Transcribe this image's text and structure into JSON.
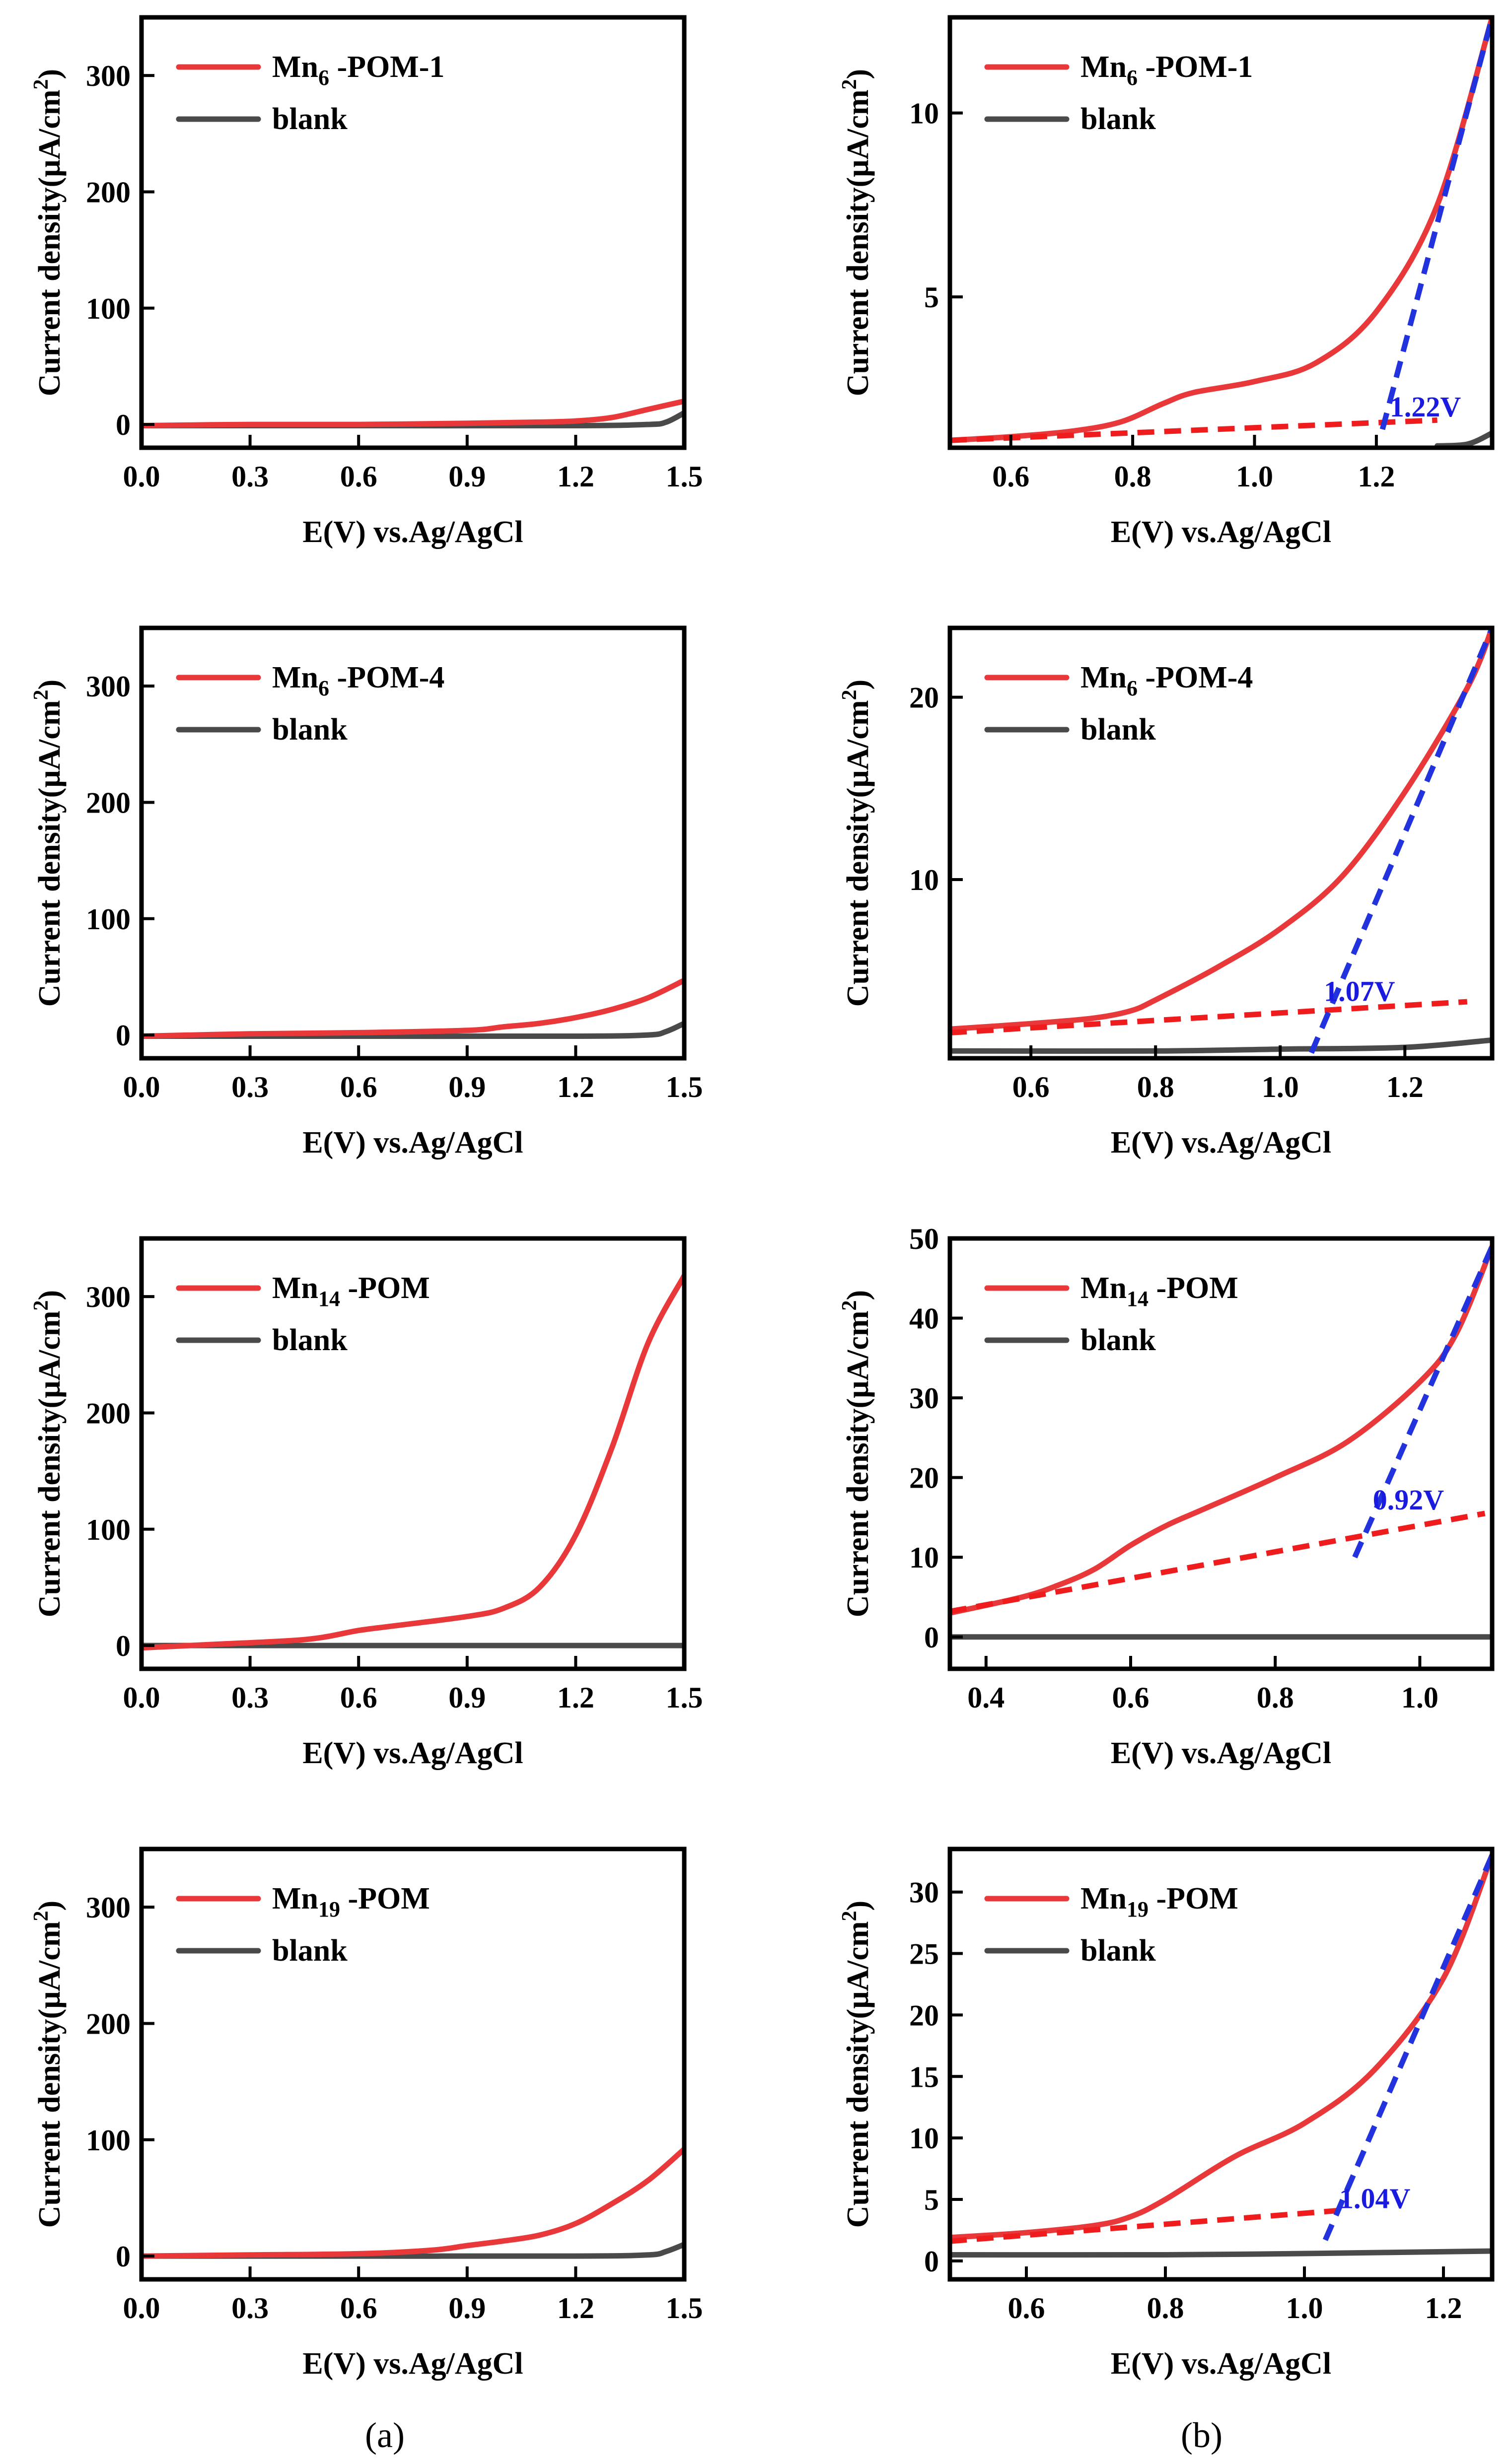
{
  "colors": {
    "sample": "#e8383a",
    "blank": "#4a4a4a",
    "fit_red": "#ee1c1c",
    "fit_blue": "#2233dd",
    "annotation": "#1b1bdf"
  },
  "captions": {
    "a": "(a)",
    "b": "(b)"
  },
  "chart_data": [
    {
      "id": "a1",
      "type": "line",
      "xlabel": "E(V) vs.Ag/AgCl",
      "ylabel": "Current density(μA/cm²)",
      "xlim": [
        0,
        1.5
      ],
      "ylim": [
        -20,
        350
      ],
      "xticks": [
        0.0,
        0.3,
        0.6,
        0.9,
        1.2,
        1.5
      ],
      "xtick_labels": [
        "0.0",
        "0.3",
        "0.6",
        "0.9",
        "1.2",
        "1.5"
      ],
      "yticks": [
        0,
        100,
        200,
        300
      ],
      "ytick_labels": [
        "0",
        "100",
        "200",
        "300"
      ],
      "legend": {
        "sample_main": "Mn",
        "sample_sub": "6",
        "sample_rest": " -POM-1",
        "blank": "blank"
      },
      "series": [
        {
          "name": "Mn6 -POM-1",
          "role": "sample",
          "x": [
            0,
            0.3,
            0.6,
            0.9,
            1.1,
            1.2,
            1.3,
            1.4,
            1.5
          ],
          "y": [
            -1,
            0,
            0,
            1,
            2,
            3,
            6,
            13,
            20
          ]
        },
        {
          "name": "blank",
          "role": "blank",
          "x": [
            0,
            0.6,
            1.2,
            1.4,
            1.45,
            1.5
          ],
          "y": [
            -1,
            -1,
            -1,
            0,
            2,
            10
          ]
        }
      ]
    },
    {
      "id": "b1",
      "type": "line",
      "xlabel": "E(V) vs.Ag/AgCl",
      "ylabel": "Current density(μA/cm²)",
      "xlim": [
        0.5,
        1.39
      ],
      "ylim": [
        0.9,
        12.6
      ],
      "xticks": [
        0.6,
        0.8,
        1.0,
        1.2
      ],
      "xtick_labels": [
        "0.6",
        "0.8",
        "1.0",
        "1.2"
      ],
      "yticks": [
        5,
        10
      ],
      "ytick_labels": [
        "5",
        "10"
      ],
      "legend": {
        "sample_main": "Mn",
        "sample_sub": "6",
        "sample_rest": " -POM-1",
        "blank": "blank"
      },
      "annotation": {
        "text": "1.22V",
        "x": 1.222,
        "y": 1.75
      },
      "series": [
        {
          "name": "Mn6 -POM-1",
          "role": "sample",
          "x": [
            0.5,
            0.6,
            0.7,
            0.78,
            0.85,
            0.9,
            1.0,
            1.1,
            1.2,
            1.3,
            1.39
          ],
          "y": [
            1.1,
            1.2,
            1.35,
            1.6,
            2.1,
            2.4,
            2.7,
            3.2,
            4.6,
            7.5,
            12.6
          ]
        },
        {
          "name": "blank",
          "role": "blank",
          "x": [
            1.3,
            1.35,
            1.39
          ],
          "y": [
            0.95,
            1.0,
            1.3
          ]
        },
        {
          "name": "fit-baseline",
          "role": "fit_red",
          "x": [
            0.5,
            1.3
          ],
          "y": [
            1.1,
            1.65
          ]
        },
        {
          "name": "fit-tangent",
          "role": "fit_blue",
          "x": [
            1.21,
            1.39
          ],
          "y": [
            1.4,
            12.6
          ]
        }
      ]
    },
    {
      "id": "a2",
      "type": "line",
      "xlabel": "E(V) vs.Ag/AgCl",
      "ylabel": "Current density(μA/cm²)",
      "xlim": [
        0,
        1.5
      ],
      "ylim": [
        -20,
        350
      ],
      "xticks": [
        0.0,
        0.3,
        0.6,
        0.9,
        1.2,
        1.5
      ],
      "xtick_labels": [
        "0.0",
        "0.3",
        "0.6",
        "0.9",
        "1.2",
        "1.5"
      ],
      "yticks": [
        0,
        100,
        200,
        300
      ],
      "ytick_labels": [
        "0",
        "100",
        "200",
        "300"
      ],
      "legend": {
        "sample_main": "Mn",
        "sample_sub": "6",
        "sample_rest": " -POM-4",
        "blank": "blank"
      },
      "series": [
        {
          "name": "Mn6 -POM-4",
          "role": "sample",
          "x": [
            0,
            0.3,
            0.6,
            0.9,
            1.0,
            1.1,
            1.2,
            1.3,
            1.4,
            1.5
          ],
          "y": [
            -1,
            1,
            2,
            4,
            7,
            10,
            15,
            22,
            32,
            47
          ]
        },
        {
          "name": "blank",
          "role": "blank",
          "x": [
            0,
            0.6,
            1.2,
            1.4,
            1.45,
            1.5
          ],
          "y": [
            -1,
            -1,
            -1,
            0,
            3,
            10
          ]
        }
      ]
    },
    {
      "id": "b2",
      "type": "line",
      "xlabel": "E(V) vs.Ag/AgCl",
      "ylabel": "Current density(μA/cm²)",
      "xlim": [
        0.47,
        1.34
      ],
      "ylim": [
        0.2,
        23.8
      ],
      "xticks": [
        0.6,
        0.8,
        1.0,
        1.2
      ],
      "xtick_labels": [
        "0.6",
        "0.8",
        "1.0",
        "1.2"
      ],
      "yticks": [
        10,
        20
      ],
      "ytick_labels": [
        "10",
        "20"
      ],
      "legend": {
        "sample_main": "Mn",
        "sample_sub": "6",
        "sample_rest": " -POM-4",
        "blank": "blank"
      },
      "annotation": {
        "text": "1.07V",
        "x": 1.07,
        "y": 3.35
      },
      "series": [
        {
          "name": "Mn6 -POM-4",
          "role": "sample",
          "x": [
            0.47,
            0.6,
            0.7,
            0.76,
            0.8,
            0.9,
            1.0,
            1.1,
            1.2,
            1.3,
            1.34
          ],
          "y": [
            1.8,
            2.1,
            2.4,
            2.8,
            3.4,
            5.2,
            7.3,
            10.2,
            14.8,
            20.5,
            23.8
          ]
        },
        {
          "name": "blank",
          "role": "blank",
          "x": [
            0.47,
            0.8,
            1.0,
            1.2,
            1.34
          ],
          "y": [
            0.6,
            0.6,
            0.7,
            0.8,
            1.2
          ]
        },
        {
          "name": "fit-baseline",
          "role": "fit_red",
          "x": [
            0.47,
            1.3
          ],
          "y": [
            1.6,
            3.3
          ]
        },
        {
          "name": "fit-tangent",
          "role": "fit_blue",
          "x": [
            1.05,
            1.34
          ],
          "y": [
            0.5,
            23.8
          ]
        }
      ]
    },
    {
      "id": "a3",
      "type": "line",
      "xlabel": "E(V) vs.Ag/AgCl",
      "ylabel": "Current density(μA/cm²)",
      "xlim": [
        0,
        1.5
      ],
      "ylim": [
        -20,
        350
      ],
      "xticks": [
        0.0,
        0.3,
        0.6,
        0.9,
        1.2,
        1.5
      ],
      "xtick_labels": [
        "0.0",
        "0.3",
        "0.6",
        "0.9",
        "1.2",
        "1.5"
      ],
      "yticks": [
        0,
        100,
        200,
        300
      ],
      "ytick_labels": [
        "0",
        "100",
        "200",
        "300"
      ],
      "legend": {
        "sample_main": "Mn",
        "sample_sub": "14",
        "sample_rest": " -POM",
        "blank": "blank"
      },
      "series": [
        {
          "name": "Mn14 -POM",
          "role": "sample",
          "x": [
            0,
            0.2,
            0.4,
            0.5,
            0.6,
            0.7,
            0.9,
            1.0,
            1.1,
            1.2,
            1.3,
            1.4,
            1.5
          ],
          "y": [
            -2,
            1,
            4,
            7,
            13,
            17,
            25,
            32,
            50,
            95,
            170,
            260,
            318
          ]
        },
        {
          "name": "blank",
          "role": "blank",
          "x": [
            0,
            0.5,
            1.0,
            1.5
          ],
          "y": [
            0,
            0,
            0,
            0
          ]
        }
      ]
    },
    {
      "id": "b3",
      "type": "line",
      "xlabel": "E(V) vs.Ag/AgCl",
      "ylabel": "Current density(μA/cm²)",
      "xlim": [
        0.35,
        1.1
      ],
      "ylim": [
        -4,
        50
      ],
      "xticks": [
        0.4,
        0.6,
        0.8,
        1.0
      ],
      "xtick_labels": [
        "0.4",
        "0.6",
        "0.8",
        "1.0"
      ],
      "yticks": [
        0,
        10,
        20,
        30,
        40,
        50
      ],
      "ytick_labels": [
        "0",
        "10",
        "20",
        "30",
        "40",
        "50"
      ],
      "legend": {
        "sample_main": "Mn",
        "sample_sub": "14",
        "sample_rest": " -POM",
        "blank": "blank"
      },
      "annotation": {
        "text": "0.92V",
        "x": 0.935,
        "y": 16.0
      },
      "series": [
        {
          "name": "Mn14 -POM",
          "role": "sample",
          "x": [
            0.35,
            0.45,
            0.5,
            0.55,
            0.6,
            0.65,
            0.7,
            0.8,
            0.9,
            1.0,
            1.05,
            1.1
          ],
          "y": [
            3,
            5,
            6.5,
            8.5,
            11.5,
            14,
            16,
            20,
            24.5,
            32,
            38,
            49
          ]
        },
        {
          "name": "blank",
          "role": "blank",
          "x": [
            0.35,
            1.1
          ],
          "y": [
            0,
            0
          ]
        },
        {
          "name": "fit-baseline",
          "role": "fit_red",
          "x": [
            0.35,
            1.09
          ],
          "y": [
            3.2,
            15.5
          ]
        },
        {
          "name": "fit-tangent",
          "role": "fit_blue",
          "x": [
            0.91,
            1.1
          ],
          "y": [
            10,
            49
          ]
        }
      ]
    },
    {
      "id": "a4",
      "type": "line",
      "xlabel": "E(V) vs.Ag/AgCl",
      "ylabel": "Current density(μA/cm²)",
      "xlim": [
        0,
        1.5
      ],
      "ylim": [
        -20,
        350
      ],
      "xticks": [
        0.0,
        0.3,
        0.6,
        0.9,
        1.2,
        1.5
      ],
      "xtick_labels": [
        "0.0",
        "0.3",
        "0.6",
        "0.9",
        "1.2",
        "1.5"
      ],
      "yticks": [
        0,
        100,
        200,
        300
      ],
      "ytick_labels": [
        "0",
        "100",
        "200",
        "300"
      ],
      "legend": {
        "sample_main": "Mn",
        "sample_sub": "19",
        "sample_rest": " -POM",
        "blank": "blank"
      },
      "series": [
        {
          "name": "Mn19 -POM",
          "role": "sample",
          "x": [
            0,
            0.3,
            0.6,
            0.8,
            0.9,
            1.0,
            1.1,
            1.2,
            1.3,
            1.4,
            1.5
          ],
          "y": [
            0,
            1,
            2,
            5,
            9,
            13,
            18,
            28,
            45,
            65,
            92
          ]
        },
        {
          "name": "blank",
          "role": "blank",
          "x": [
            0,
            0.6,
            1.2,
            1.4,
            1.45,
            1.5
          ],
          "y": [
            0,
            0,
            0,
            1,
            4,
            10
          ]
        }
      ]
    },
    {
      "id": "b4",
      "type": "line",
      "xlabel": "E(V) vs.Ag/AgCl",
      "ylabel": "Current density(μA/cm²)",
      "xlim": [
        0.49,
        1.27
      ],
      "ylim": [
        -1.5,
        33.5
      ],
      "xticks": [
        0.6,
        0.8,
        1.0,
        1.2
      ],
      "xtick_labels": [
        "0.6",
        "0.8",
        "1.0",
        "1.2"
      ],
      "yticks": [
        0,
        5,
        10,
        15,
        20,
        25,
        30
      ],
      "ytick_labels": [
        "0",
        "5",
        "10",
        "15",
        "20",
        "25",
        "30"
      ],
      "legend": {
        "sample_main": "Mn",
        "sample_sub": "19",
        "sample_rest": " -POM",
        "blank": "blank"
      },
      "annotation": {
        "text": "1.04V",
        "x": 1.05,
        "y": 4.3
      },
      "series": [
        {
          "name": "Mn19 -POM",
          "role": "sample",
          "x": [
            0.49,
            0.6,
            0.7,
            0.75,
            0.8,
            0.9,
            1.0,
            1.1,
            1.2,
            1.27
          ],
          "y": [
            1.9,
            2.3,
            2.9,
            3.6,
            5,
            8.5,
            11.2,
            15.5,
            23,
            33
          ]
        },
        {
          "name": "blank",
          "role": "blank",
          "x": [
            0.49,
            0.8,
            1.0,
            1.27
          ],
          "y": [
            0.5,
            0.5,
            0.6,
            0.8
          ]
        },
        {
          "name": "fit-baseline",
          "role": "fit_red",
          "x": [
            0.49,
            1.05
          ],
          "y": [
            1.6,
            4.1
          ]
        },
        {
          "name": "fit-tangent",
          "role": "fit_blue",
          "x": [
            1.03,
            1.27
          ],
          "y": [
            1.7,
            33
          ]
        }
      ]
    }
  ]
}
